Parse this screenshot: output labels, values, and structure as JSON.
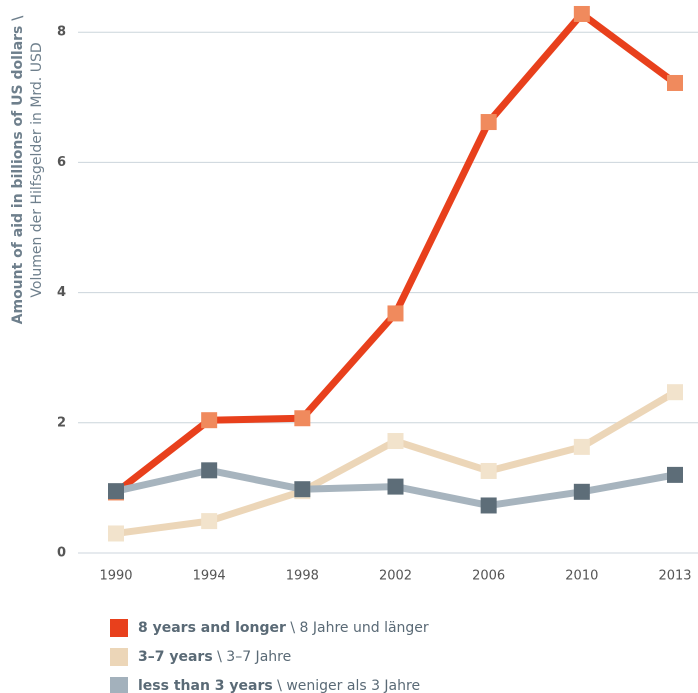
{
  "chart_data": {
    "type": "line",
    "y_label": "Amount of aid in billions of US dollars \\",
    "y_label_sub": "Volumen der Hilfsgelder in Mrd. USD",
    "categories": [
      "1990",
      "1994",
      "1998",
      "2002",
      "2006",
      "2010",
      "2013"
    ],
    "ylim": [
      0,
      8.5
    ],
    "yticks": [
      0,
      2,
      4,
      6,
      8
    ],
    "grid": true,
    "legend_separator": "\\",
    "series": [
      {
        "name": "8 years and longer",
        "name_de": "8 Jahre und länger",
        "color": "#e8401c",
        "marker_color": "#f08a5d",
        "values": [
          0.93,
          2.04,
          2.07,
          3.68,
          6.62,
          8.28,
          7.22
        ]
      },
      {
        "name": "3–7 years",
        "name_de": "3–7 Jahre",
        "color": "#ecd6b8",
        "marker_color": "#f2e3cc",
        "values": [
          0.3,
          0.49,
          0.95,
          1.72,
          1.26,
          1.63,
          2.47
        ]
      },
      {
        "name": "less than 3 years",
        "name_de": "weniger als 3 Jahre",
        "color": "#a7b4be",
        "marker_color": "#5d6d78",
        "values": [
          0.95,
          1.27,
          0.98,
          1.02,
          0.73,
          0.94,
          1.2
        ]
      }
    ]
  }
}
